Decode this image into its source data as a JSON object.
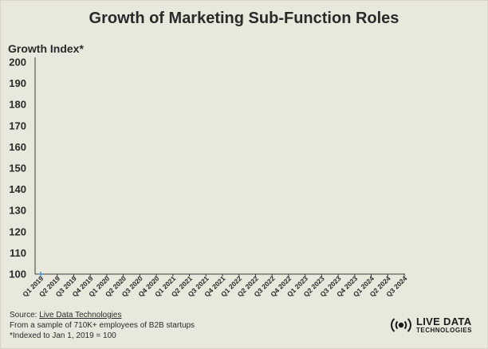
{
  "chart_data": {
    "type": "line",
    "title": "Growth of Marketing Sub-Function Roles",
    "ylabel": "Growth Index*",
    "xlabel": "",
    "ylim": [
      100,
      200
    ],
    "yticks": [
      "200",
      "190",
      "180",
      "170",
      "160",
      "150",
      "140",
      "130",
      "120",
      "110",
      "100"
    ],
    "categories": [
      "Q1 2019",
      "Q2 2019",
      "Q3 2019",
      "Q4 2019",
      "Q1 2020",
      "Q2 2020",
      "Q3 2020",
      "Q4 2020",
      "Q1 2021",
      "Q2 2021",
      "Q3 2021",
      "Q4 2021",
      "Q1 2022",
      "Q2 2022",
      "Q3 2022",
      "Q4 2022",
      "Q1 2023",
      "Q2 2023",
      "Q3 2023",
      "Q4 2023",
      "Q1 2024",
      "Q2 2024",
      "Q3 2024"
    ],
    "series": [
      {
        "color": "#4a90c8",
        "x": [
          "Q1 2019"
        ],
        "values": [
          100
        ]
      }
    ],
    "grid": false,
    "legend": "none"
  },
  "footer": {
    "source_prefix": "Source: ",
    "source_link": "Live Data Technologies",
    "line2": "From a sample of 710K+ employees of B2B startups",
    "line3": "*Indexed to Jan 1, 2019 = 100"
  },
  "logo": {
    "line1": "LIVE DATA",
    "line2": "TECHNOLOGIES",
    "icon": "broadcast-icon"
  }
}
